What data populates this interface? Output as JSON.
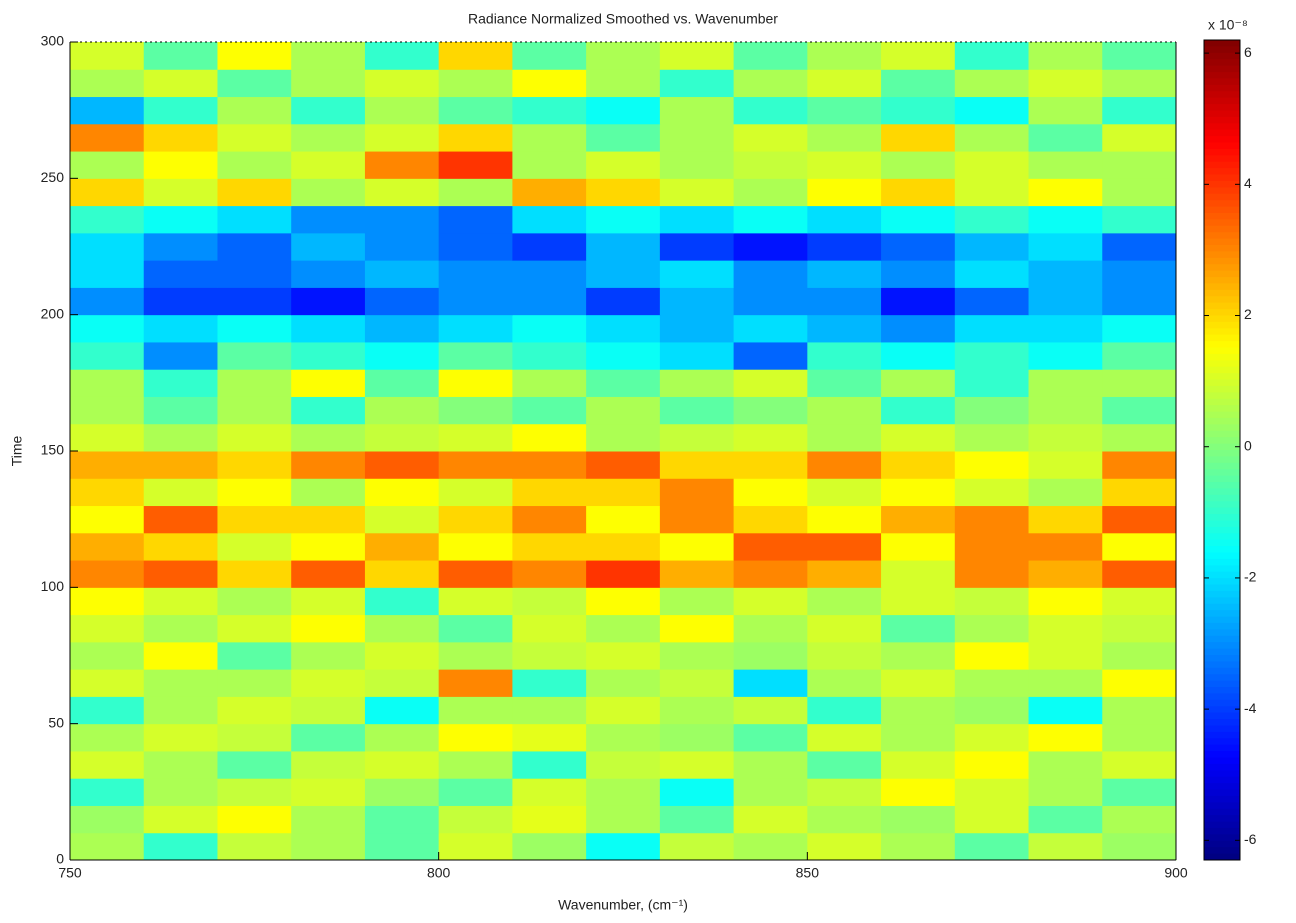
{
  "chart_data": {
    "type": "heatmap",
    "title": "Radiance Normalized Smoothed vs. Wavenumber",
    "xlabel": "Wavenumber, (cm⁻¹)",
    "ylabel": "Time",
    "colorbar_label": "x 10⁻⁸",
    "colormap": "jet",
    "xlim": [
      750,
      900
    ],
    "xticks": [
      750,
      800,
      850,
      900
    ],
    "ylim": [
      0,
      300
    ],
    "yticks": [
      0,
      50,
      100,
      150,
      200,
      250,
      300
    ],
    "clim": [
      -6.3,
      6.2
    ],
    "cticks": [
      -6,
      -4,
      -2,
      0,
      2,
      4,
      6
    ],
    "x": [
      755,
      765,
      775,
      785,
      795,
      805,
      815,
      825,
      835,
      845,
      855,
      865,
      875,
      885,
      895
    ],
    "y": [
      5,
      15,
      25,
      35,
      45,
      55,
      65,
      75,
      85,
      95,
      105,
      115,
      125,
      135,
      145,
      155,
      165,
      175,
      185,
      195,
      205,
      215,
      225,
      235,
      245,
      255,
      265,
      275,
      285,
      295
    ],
    "values": [
      [
        0.5,
        -1,
        0.8,
        0.5,
        -0.5,
        1,
        0.3,
        -1.5,
        0.8,
        0.5,
        1,
        0.5,
        -0.5,
        0.8,
        0.3
      ],
      [
        0.3,
        1,
        1.5,
        0.5,
        -0.5,
        0.8,
        1.2,
        0.5,
        -0.5,
        1,
        0.5,
        0.3,
        1,
        -0.5,
        0.5
      ],
      [
        -1,
        0.5,
        0.8,
        1,
        0.3,
        -0.5,
        1,
        0.5,
        -1.5,
        0.5,
        0.8,
        1.5,
        1,
        0.5,
        -0.5
      ],
      [
        1,
        0.5,
        -0.5,
        0.8,
        1,
        0.5,
        -1,
        0.8,
        1,
        0.5,
        -0.5,
        1,
        1.5,
        0.5,
        1
      ],
      [
        0.5,
        1,
        0.8,
        -0.5,
        0.5,
        1.5,
        1.2,
        0.5,
        0.3,
        -0.5,
        1,
        0.5,
        1,
        1.5,
        0.5
      ],
      [
        -1,
        0.5,
        1,
        0.8,
        -1.5,
        0.5,
        0.5,
        1,
        0.5,
        0.8,
        -1,
        0.5,
        0.3,
        -1.5,
        0.5
      ],
      [
        1,
        0.5,
        0.5,
        1,
        0.8,
        3,
        -1,
        0.5,
        0.8,
        -2,
        0.5,
        1,
        0.5,
        0.5,
        1.5
      ],
      [
        0.5,
        1.5,
        -0.5,
        0.5,
        1,
        0.5,
        0.8,
        1,
        0.5,
        0.3,
        0.8,
        0.5,
        1.5,
        1,
        0.5
      ],
      [
        1,
        0.5,
        1,
        1.5,
        0.5,
        -0.5,
        1,
        0.5,
        1.5,
        0.5,
        1,
        -0.5,
        0.5,
        1,
        0.8
      ],
      [
        1.5,
        1,
        0.5,
        1,
        -1,
        1,
        0.8,
        1.5,
        0.5,
        1,
        0.5,
        1,
        0.8,
        1.5,
        1
      ],
      [
        3,
        3.5,
        2,
        3.5,
        2,
        3.5,
        3,
        4,
        2.5,
        3,
        2.5,
        1,
        3,
        2.5,
        3.5
      ],
      [
        2.5,
        2,
        1,
        1.5,
        2.5,
        1.5,
        2,
        2,
        1.5,
        3.5,
        3.5,
        1.5,
        3,
        3,
        1.5
      ],
      [
        1.5,
        3.5,
        2,
        2,
        1,
        2,
        3,
        1.5,
        3,
        2,
        1.5,
        2.5,
        3,
        2,
        3.5
      ],
      [
        2,
        1,
        1.5,
        0.5,
        1.5,
        1,
        2,
        2,
        3,
        1.5,
        1,
        1.5,
        1,
        0.5,
        2
      ],
      [
        2.5,
        2.5,
        2,
        3,
        3.5,
        3,
        3,
        3.5,
        2,
        2,
        3,
        2,
        1.5,
        1,
        3
      ],
      [
        1,
        0.5,
        1,
        0.5,
        0.8,
        1,
        1.5,
        0.5,
        0.8,
        1,
        0.5,
        1,
        0.5,
        0.8,
        0.5
      ],
      [
        0.5,
        -0.5,
        0.5,
        -1,
        0.5,
        0,
        -0.5,
        0.5,
        -0.5,
        0,
        0.5,
        -1,
        0,
        0.5,
        -0.5
      ],
      [
        0.5,
        -1,
        0.5,
        1.5,
        -0.5,
        1.5,
        0.5,
        -0.5,
        0.5,
        1,
        -0.5,
        0.5,
        -1,
        0.5,
        0.5
      ],
      [
        -1,
        -3,
        -0.5,
        -1,
        -1.5,
        -0.5,
        -1,
        -1.5,
        -2,
        -3.5,
        -1,
        -1.5,
        -1,
        -1.5,
        -0.5
      ],
      [
        -1.5,
        -2,
        -1.5,
        -2,
        -2.5,
        -2,
        -1.5,
        -2,
        -2.5,
        -2,
        -2.5,
        -3,
        -2,
        -2,
        -1.5
      ],
      [
        -3,
        -4,
        -4,
        -4.5,
        -3.5,
        -3,
        -3,
        -4,
        -2.5,
        -3,
        -3,
        -4.5,
        -3.5,
        -2.5,
        -3
      ],
      [
        -2,
        -3.5,
        -3.5,
        -3,
        -2.5,
        -3,
        -3,
        -2.5,
        -2,
        -3,
        -2.5,
        -3,
        -2,
        -2.5,
        -3
      ],
      [
        -2,
        -3,
        -3.5,
        -2.5,
        -3,
        -3.5,
        -4,
        -2.5,
        -4,
        -4.5,
        -4,
        -3.5,
        -2.5,
        -2,
        -3.5
      ],
      [
        -1,
        -1.5,
        -2,
        -3,
        -3,
        -3.5,
        -2,
        -1.5,
        -2,
        -1.5,
        -2,
        -1.5,
        -1,
        -1.5,
        -1
      ],
      [
        2,
        1,
        2,
        0.5,
        1,
        0.5,
        2.5,
        2,
        1,
        0.5,
        1.5,
        2,
        1,
        1.5,
        0.5
      ],
      [
        0.5,
        1.5,
        0.5,
        1,
        3,
        4,
        0.5,
        1,
        0.5,
        0.8,
        1,
        0.5,
        1,
        0.5,
        0.5
      ],
      [
        3,
        2,
        1,
        0.5,
        1,
        2,
        0.5,
        -0.5,
        0.5,
        1,
        0.5,
        2,
        0.5,
        -0.5,
        1
      ],
      [
        -2.5,
        -1,
        0.5,
        -1,
        0.5,
        -0.5,
        -1,
        -1.5,
        0.5,
        -1,
        -0.5,
        -1,
        -1.5,
        0.5,
        -1
      ],
      [
        0.5,
        1,
        -0.5,
        0.5,
        1,
        0.5,
        1.5,
        0.5,
        -1,
        0.5,
        1,
        -0.5,
        0.5,
        1,
        0.5
      ],
      [
        1,
        -0.5,
        1.5,
        0.5,
        -1,
        2,
        -0.5,
        0.5,
        1,
        -0.5,
        0.5,
        1,
        -1,
        0.5,
        -0.5
      ]
    ]
  }
}
